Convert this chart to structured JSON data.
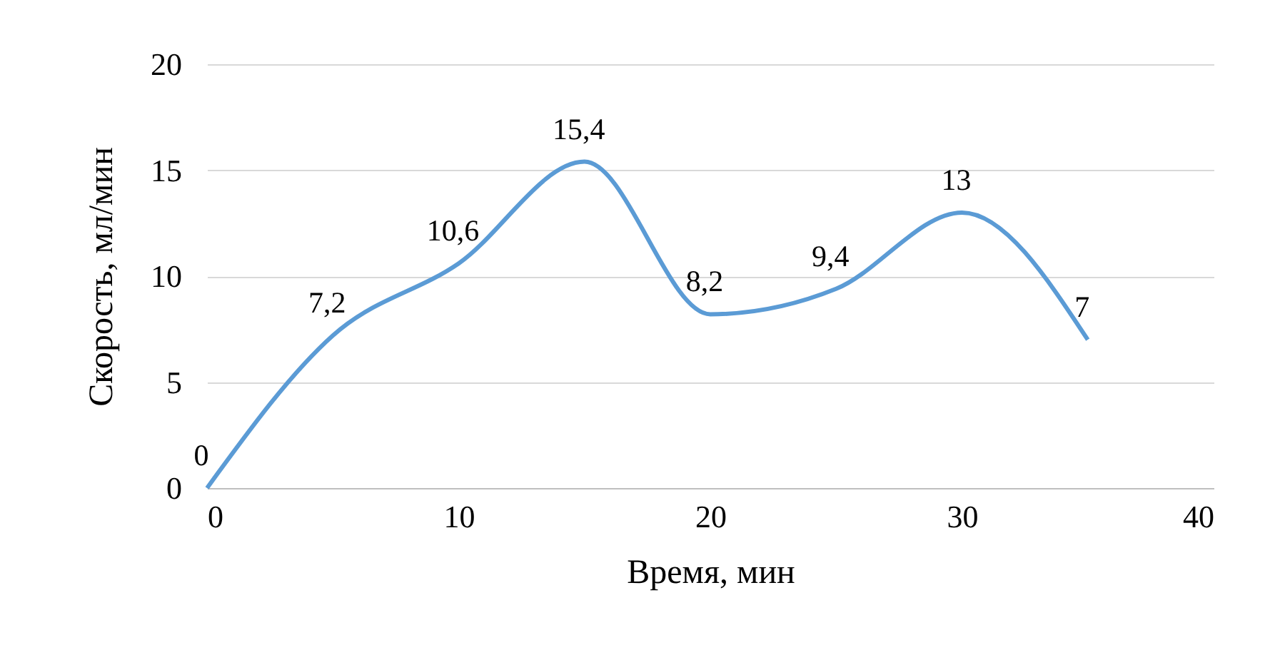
{
  "chart_data": {
    "type": "line",
    "xlabel": "Время, мин",
    "ylabel": "Скорость, мл/мин",
    "x": [
      0,
      5,
      10,
      15,
      20,
      25,
      30,
      35
    ],
    "series": [
      {
        "color": "#5b9bd5",
        "values": [
          0,
          7.2,
          10.6,
          15.4,
          8.2,
          9.4,
          13,
          7
        ],
        "value_labels": [
          "0",
          "7,2",
          "10,6",
          "15,4",
          "8,2",
          "9,4",
          "13",
          "7"
        ]
      }
    ],
    "xlim": [
      0,
      40
    ],
    "xticks": [
      0,
      10,
      20,
      30,
      40
    ],
    "ylim": [
      0,
      20
    ],
    "yticks": [
      0,
      5,
      10,
      15,
      20
    ],
    "grid": "y",
    "marker": "none",
    "line_style": "solid"
  }
}
